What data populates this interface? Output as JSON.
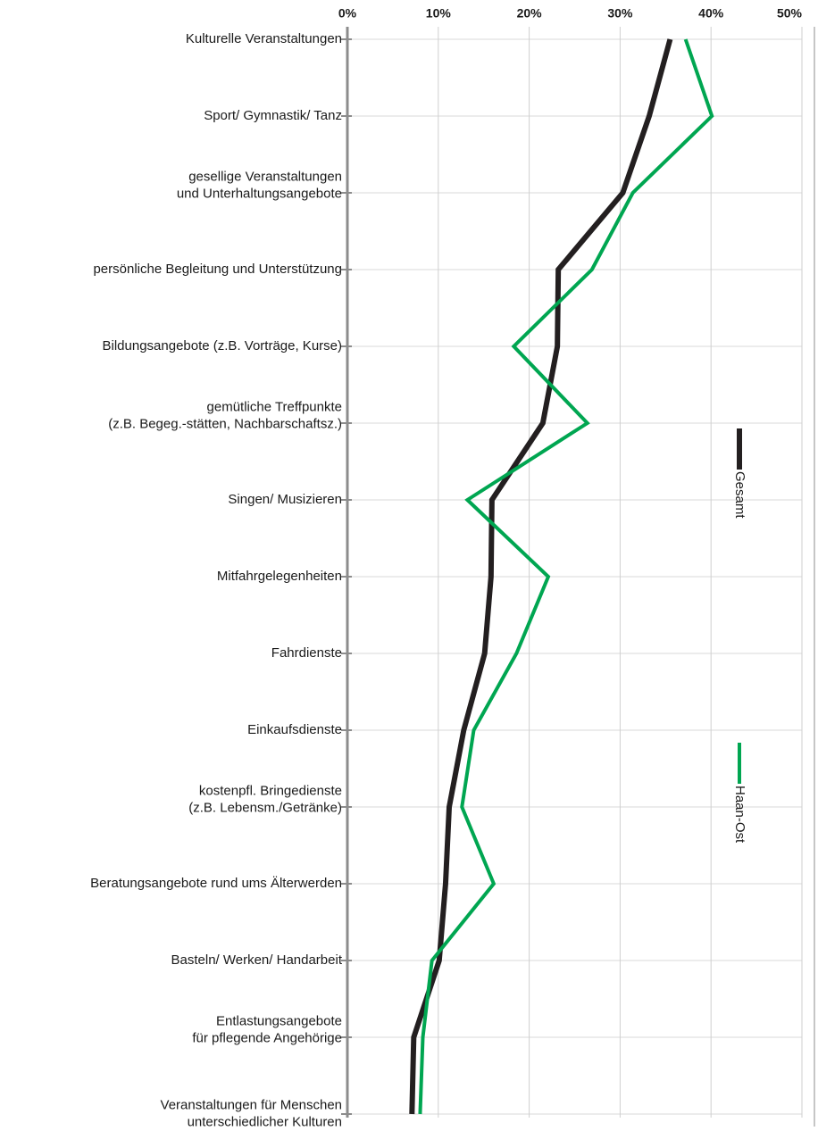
{
  "chart_data": {
    "type": "line",
    "categories": [
      "Kulturelle Veranstaltungen",
      "Sport/ Gymnastik/ Tanz",
      "gesellige Veranstaltungen\nund Unterhaltungsangebote",
      "persönliche Begleitung und Unterstützung",
      "Bildungsangebote (z.B. Vorträge, Kurse)",
      "gemütliche Treffpunkte\n(z.B. Begeg.-stätten, Nachbarschaftsz.)",
      "Singen/ Musizieren",
      "Mitfahrgelegenheiten",
      "Fahrdienste",
      "Einkaufsdienste",
      "kostenpfl. Bringedienste\n(z.B. Lebensm./Getränke)",
      "Beratungsangebote rund ums Älterwerden",
      "Basteln/ Werken/ Handarbeit",
      "Entlastungsangebote\nfür pflegende Angehörige",
      "Veranstaltungen für Menschen\nunterschiedlicher Kulturen"
    ],
    "series": [
      {
        "name": "Gesamt",
        "color": "#231f20",
        "values": [
          35.5,
          33.2,
          30.3,
          23.2,
          23.1,
          21.5,
          15.9,
          15.8,
          15.1,
          12.8,
          11.2,
          10.8,
          10.1,
          7.3,
          7.1
        ]
      },
      {
        "name": "Haan-Ost",
        "color": "#00a651",
        "values": [
          37.2,
          40.1,
          31.4,
          26.9,
          18.3,
          26.4,
          13.2,
          22.1,
          18.6,
          13.9,
          12.6,
          16.1,
          9.3,
          8.3,
          8.0
        ]
      }
    ],
    "xlim": [
      0,
      50
    ],
    "xticks": [
      {
        "value": 0,
        "label": "0%"
      },
      {
        "value": 10,
        "label": "10%"
      },
      {
        "value": 20,
        "label": "20%"
      },
      {
        "value": 30,
        "label": "30%"
      },
      {
        "value": 40,
        "label": "40%"
      },
      {
        "value": 50,
        "label": "50%"
      }
    ],
    "grid": true
  }
}
